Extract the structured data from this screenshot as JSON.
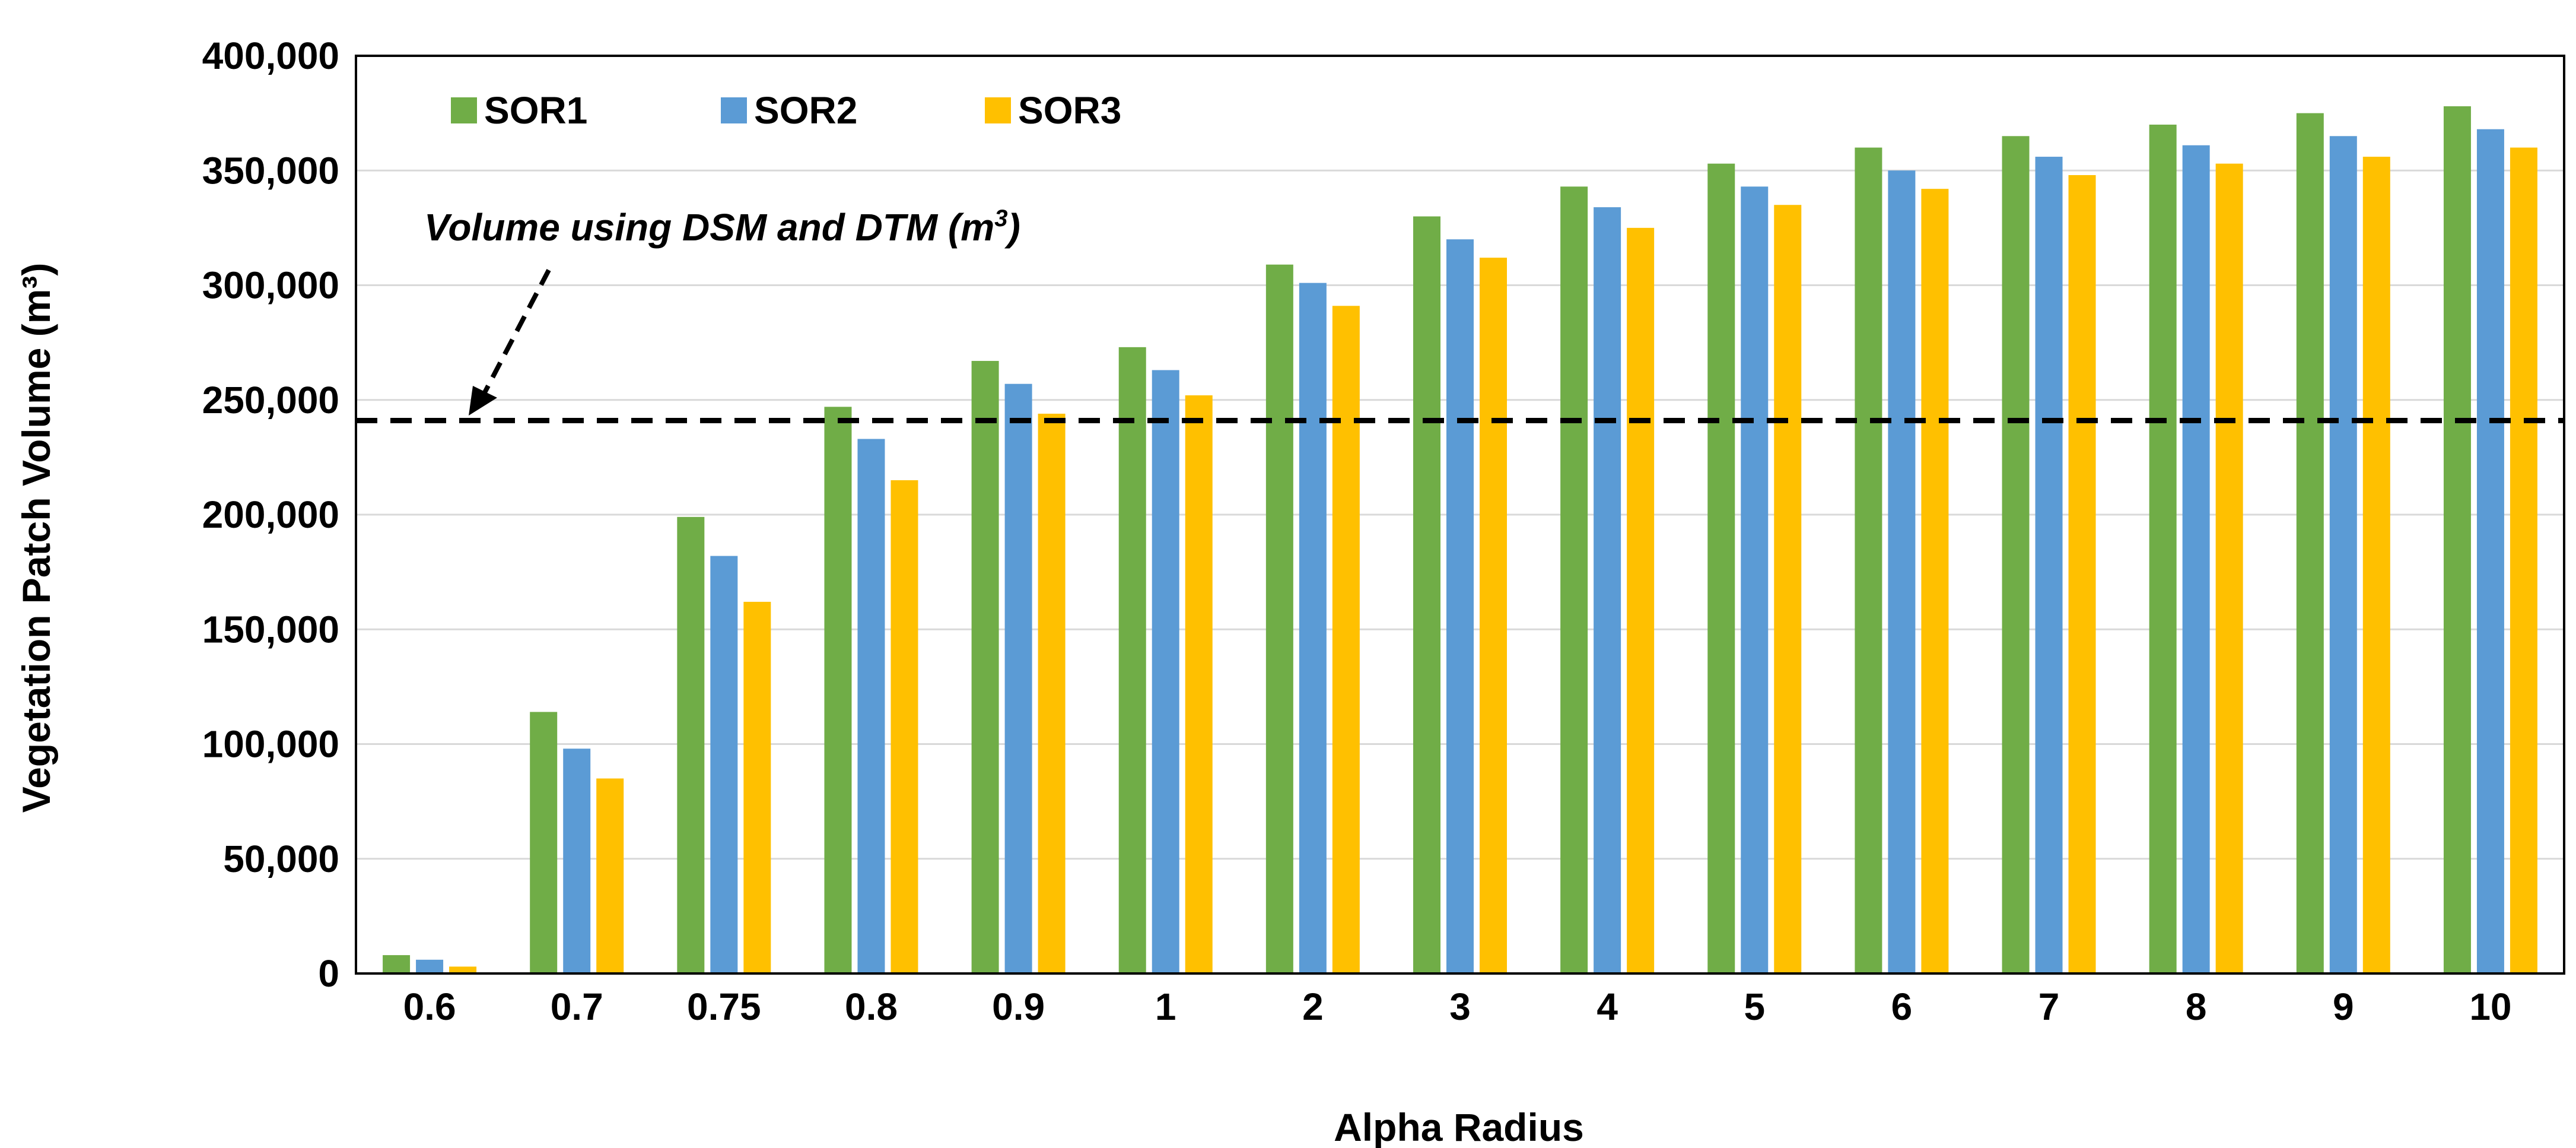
{
  "chart_data": {
    "type": "bar",
    "title": "",
    "xlabel": "Alpha Radius",
    "ylabel": "Vegetation  Patch Volume (m³)",
    "ylim": [
      0,
      400000
    ],
    "yticks": [
      0,
      50000,
      100000,
      150000,
      200000,
      250000,
      300000,
      350000,
      400000
    ],
    "ytick_labels": [
      "0",
      "50,000",
      "100,000",
      "150,000",
      "200,000",
      "250,000",
      "300,000",
      "350,000",
      "400,000"
    ],
    "grid": true,
    "legend_position": "top-left",
    "categories": [
      "0.6",
      "0.7",
      "0.75",
      "0.8",
      "0.9",
      "1",
      "2",
      "3",
      "4",
      "5",
      "6",
      "7",
      "8",
      "9",
      "10"
    ],
    "series": [
      {
        "name": "SOR1",
        "color": "#70AD47",
        "values": [
          8000,
          114000,
          199000,
          247000,
          267000,
          273000,
          309000,
          330000,
          343000,
          353000,
          360000,
          365000,
          370000,
          375000,
          378000
        ]
      },
      {
        "name": "SOR2",
        "color": "#5B9BD5",
        "values": [
          6000,
          98000,
          182000,
          233000,
          257000,
          263000,
          301000,
          320000,
          334000,
          343000,
          350000,
          356000,
          361000,
          365000,
          368000
        ]
      },
      {
        "name": "SOR3",
        "color": "#FFC000",
        "values": [
          3000,
          85000,
          162000,
          215000,
          244000,
          252000,
          291000,
          312000,
          325000,
          335000,
          342000,
          348000,
          353000,
          356000,
          360000
        ]
      }
    ],
    "reference_line": {
      "value": 241000,
      "style": "dashed",
      "color": "#000000"
    },
    "annotation": {
      "text": "Volume using DSM and DTM (m",
      "sup": "3",
      "close": ")"
    }
  }
}
